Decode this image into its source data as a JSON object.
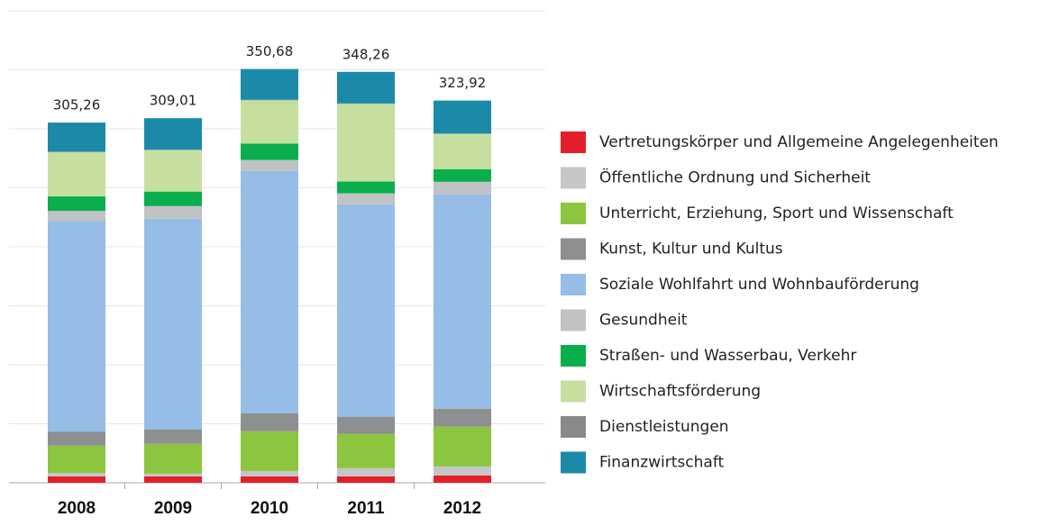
{
  "chart_data": {
    "type": "stacked_bar",
    "categories": [
      "2008",
      "2009",
      "2010",
      "2011",
      "2012"
    ],
    "series": [
      {
        "name": "Vertretungskörper und Allgemeine Angelegenheiten",
        "color": "#e3202a",
        "values": [
          5.4,
          5.4,
          5.4,
          5.4,
          6.1
        ]
      },
      {
        "name": "Öffentliche Ordnung und Sicherheit",
        "color": "#c5c6c8",
        "values": [
          3,
          2.3,
          4.6,
          6.9,
          7.7
        ]
      },
      {
        "name": "Unterricht, Erziehung, Sport und Wissenschaft",
        "color": "#8cc63e",
        "values": [
          23,
          25.3,
          33.7,
          29.1,
          33.7
        ]
      },
      {
        "name": "Kunst, Kultur und Kultus",
        "color": "#8e8f91",
        "values": [
          12,
          12.3,
          15.3,
          14.6,
          15.3
        ]
      },
      {
        "name": "Soziale Wohlfahrt und Wohnbauförderung",
        "color": "#95bde6",
        "values": [
          178.6,
          178.5,
          205.4,
          180.1,
          181.6
        ]
      },
      {
        "name": "Gesundheit",
        "color": "#c1c2c4",
        "values": [
          8.4,
          10.7,
          9.2,
          9.2,
          10.7
        ]
      },
      {
        "name": "Straßen- und Wasserbau, Verkehr",
        "color": "#09ae4d",
        "values": [
          12.3,
          12.3,
          13.8,
          10,
          10.7
        ]
      },
      {
        "name": "Wirtschaftsförderung",
        "color": "#c6df9f",
        "values": [
          37.5,
          35.2,
          36.8,
          65.9,
          29.9
        ]
      },
      {
        "name": "Dienstleistungen",
        "color": "#88898b",
        "values": [
          0.56,
          0.21,
          0.38,
          0.26,
          0.22
        ]
      },
      {
        "name": "Finanzwirtschaft",
        "color": "#1b8aa8",
        "values": [
          24.5,
          26.8,
          26.1,
          26.8,
          28
        ]
      }
    ],
    "totals": [
      305.26,
      309.01,
      350.68,
      348.26,
      323.92
    ],
    "total_labels": [
      "305,26",
      "309,01",
      "350,68",
      "348,26",
      "323,92"
    ],
    "ylim": [
      0,
      400
    ],
    "yticks": [
      0,
      50,
      100,
      150,
      200,
      250,
      300,
      350,
      400
    ],
    "grid": true
  }
}
